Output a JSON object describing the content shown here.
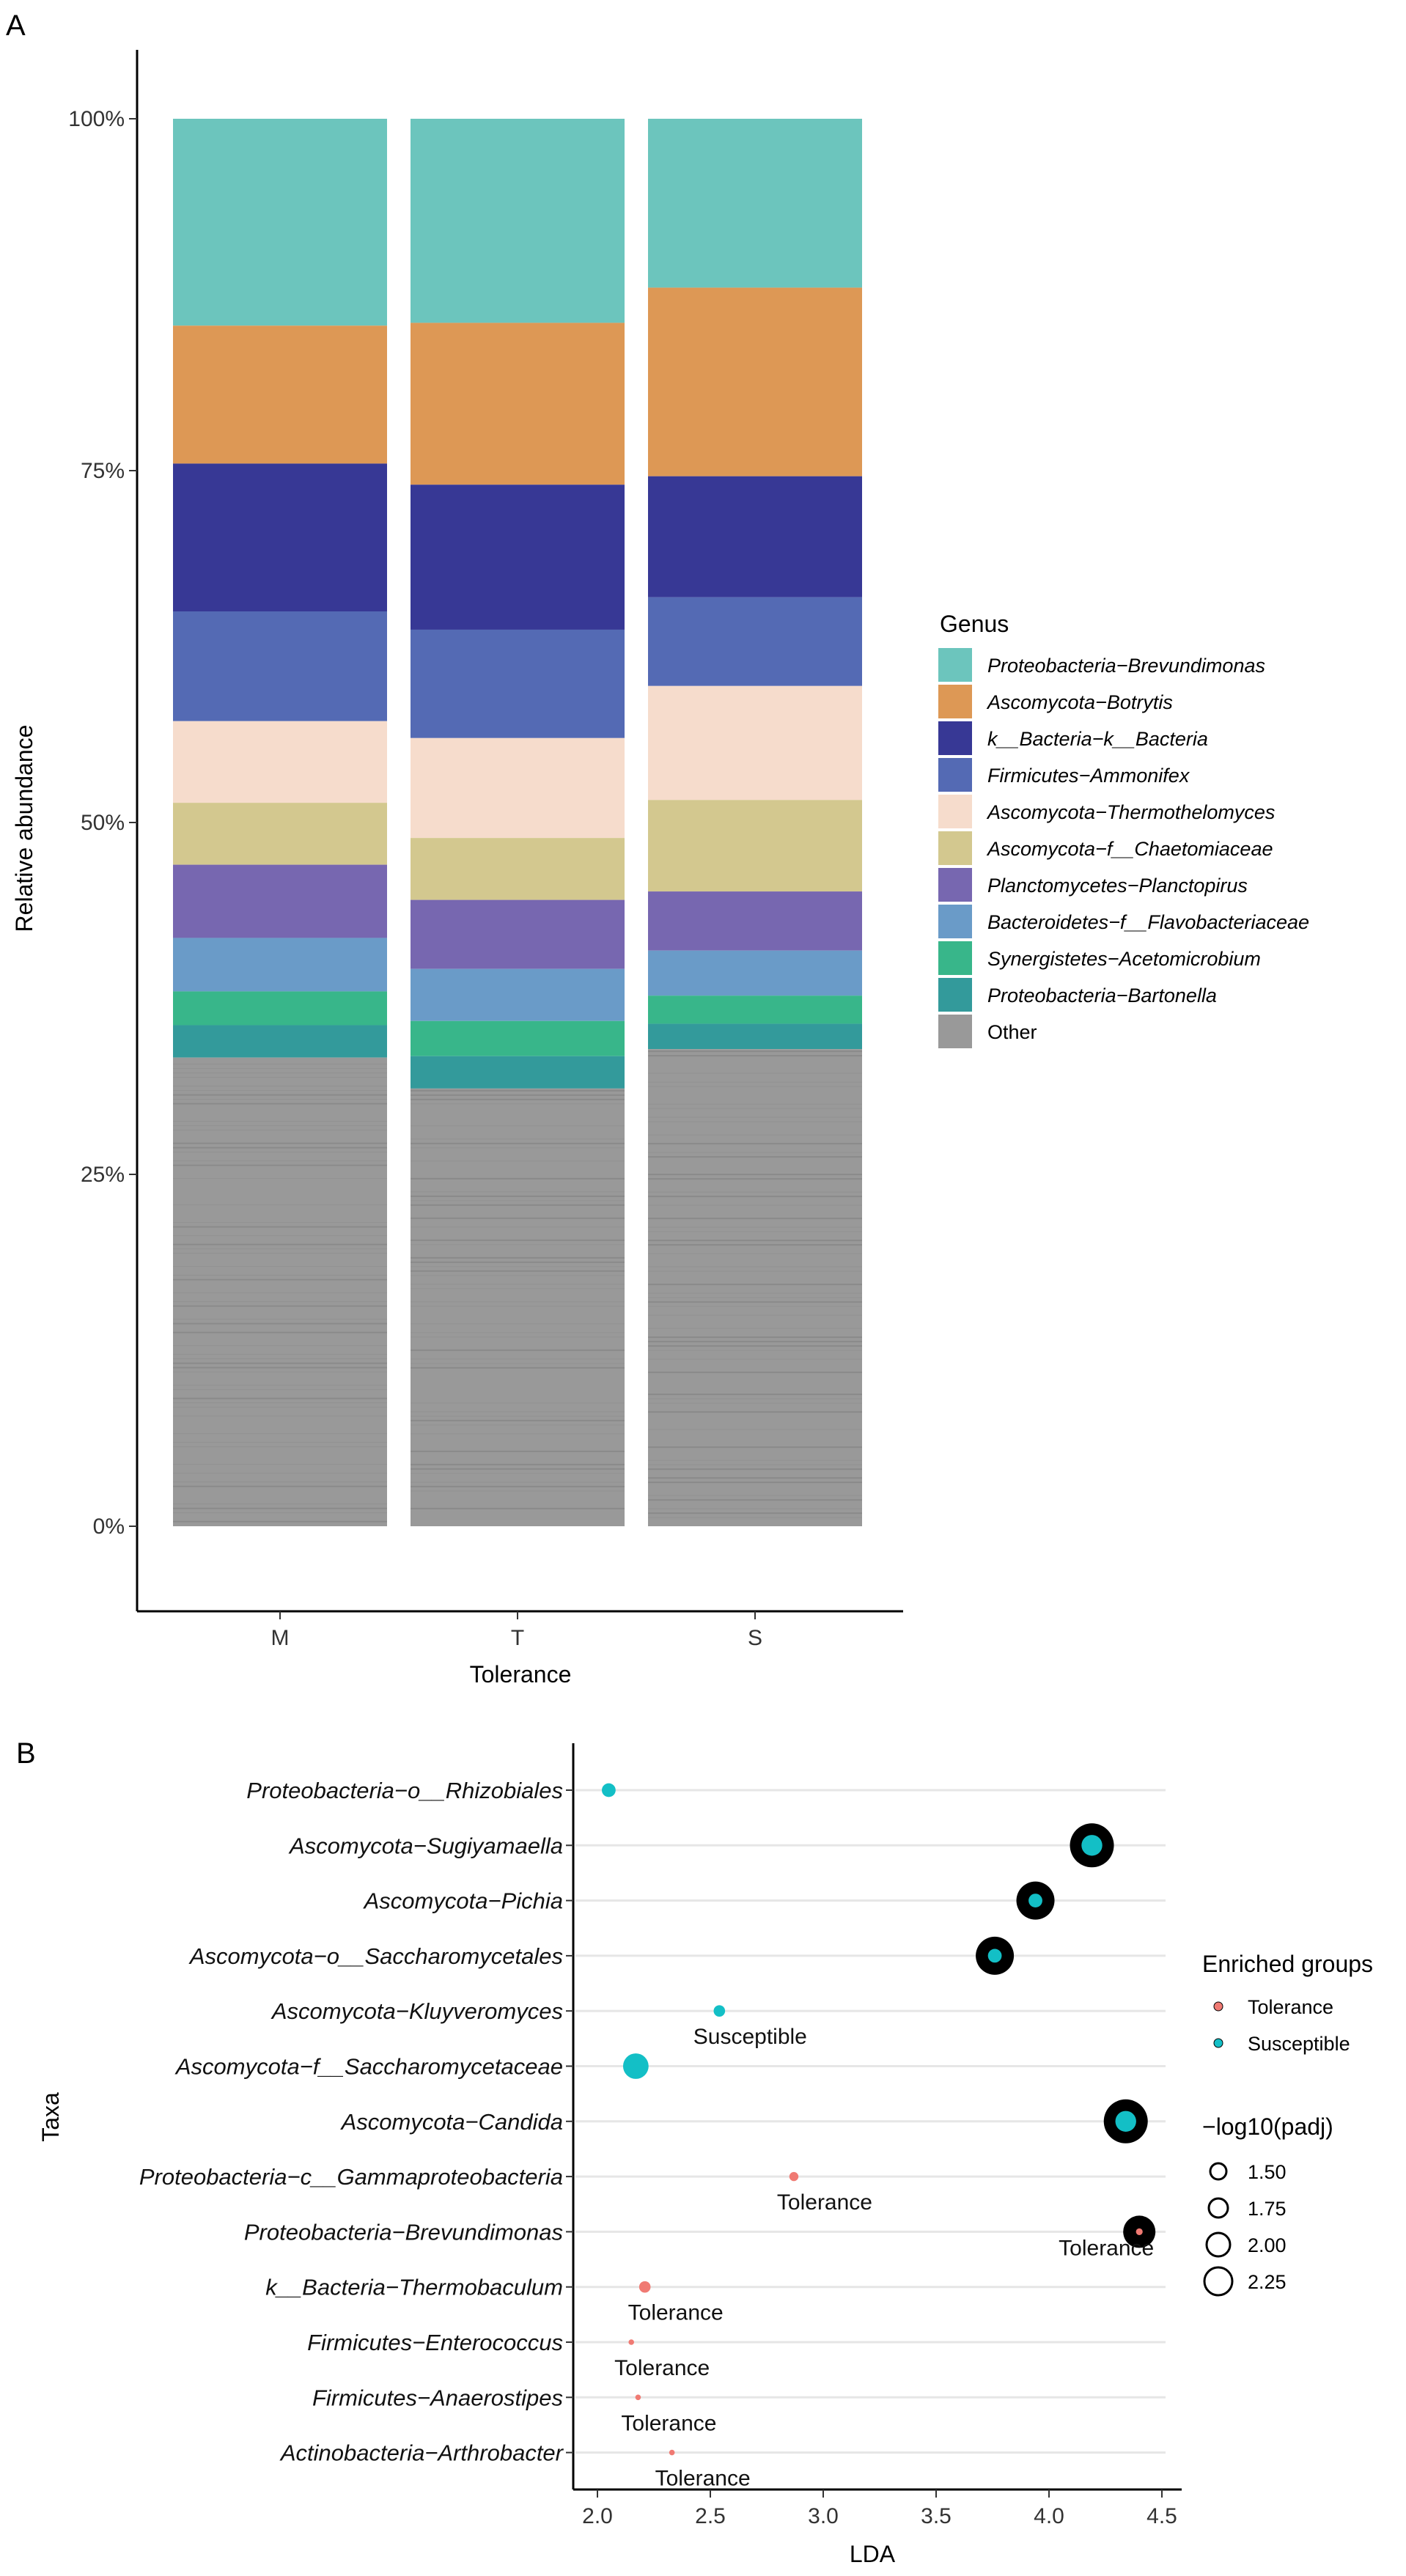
{
  "chart_data": [
    {
      "panel": "A",
      "type": "bar",
      "stacked": true,
      "xlabel": "Tolerance",
      "ylabel": "Relative abundance",
      "categories": [
        "M",
        "T",
        "S"
      ],
      "y_ticks": [
        "0%",
        "25%",
        "50%",
        "75%",
        "100%"
      ],
      "ylim": [
        0,
        100
      ],
      "legend": {
        "title": "Genus",
        "position": "right"
      },
      "series": [
        {
          "name": "Proteobacteria−Brevundimonas",
          "color": "#6CC5BD",
          "values": [
            14.7,
            14.5,
            12.0
          ]
        },
        {
          "name": "Ascomycota−Botrytis",
          "color": "#DD9855",
          "values": [
            9.8,
            11.5,
            13.4
          ]
        },
        {
          "name": "k__Bacteria−k__Bacteria",
          "color": "#373895",
          "values": [
            10.5,
            10.3,
            8.6
          ]
        },
        {
          "name": "Firmicutes−Ammonifex",
          "color": "#546AB4",
          "values": [
            7.8,
            7.7,
            6.3
          ]
        },
        {
          "name": "Ascomycota−Thermothelomyces",
          "color": "#F6DCCC",
          "values": [
            5.8,
            7.1,
            8.1
          ]
        },
        {
          "name": "Ascomycota−f__Chaetomiaceae",
          "color": "#D3C88F",
          "values": [
            4.4,
            4.4,
            6.5
          ]
        },
        {
          "name": "Planctomycetes−Planctopirus",
          "color": "#7767B0",
          "values": [
            5.2,
            4.9,
            4.2
          ]
        },
        {
          "name": "Bacteroidetes−f__Flavobacteriaceae",
          "color": "#6A9BC8",
          "values": [
            3.8,
            3.7,
            3.2
          ]
        },
        {
          "name": "Synergistetes−Acetomicrobium",
          "color": "#38B68A",
          "values": [
            2.4,
            2.5,
            2.0
          ]
        },
        {
          "name": "Proteobacteria−Bartonella",
          "color": "#339A9B",
          "values": [
            2.3,
            2.3,
            1.8
          ]
        },
        {
          "name": "Other",
          "color": "#999999",
          "values": [
            33.3,
            31.1,
            33.9
          ]
        }
      ]
    },
    {
      "panel": "B",
      "type": "scatter",
      "xlabel": "LDA",
      "ylabel": "Taxa",
      "xlim": [
        1.95,
        4.55
      ],
      "x_ticks": [
        "2.0",
        "2.5",
        "3.0",
        "3.5",
        "4.0",
        "4.5"
      ],
      "legend_color": {
        "title": "Enriched groups",
        "entries": [
          {
            "name": "Tolerance",
            "color": "#F07A73"
          },
          {
            "name": "Susceptible",
            "color": "#13BFC6"
          }
        ]
      },
      "legend_size": {
        "title": "−log10(padj)",
        "entries": [
          "1.50",
          "1.75",
          "2.00",
          "2.25"
        ]
      },
      "points": [
        {
          "taxon": "Proteobacteria−o__Rhizobiales",
          "lda": 2.05,
          "group": "Susceptible",
          "size": 1.7,
          "ring": false,
          "label": ""
        },
        {
          "taxon": "Ascomycota−Sugiyamaella",
          "lda": 4.19,
          "group": "Susceptible",
          "size": 2.0,
          "ring": true,
          "label": ""
        },
        {
          "taxon": "Ascomycota−Pichia",
          "lda": 3.94,
          "group": "Susceptible",
          "size": 1.7,
          "ring": true,
          "label": ""
        },
        {
          "taxon": "Ascomycota−o__Saccharomycetales",
          "lda": 3.76,
          "group": "Susceptible",
          "size": 1.7,
          "ring": true,
          "label": ""
        },
        {
          "taxon": "Ascomycota−Kluyveromyces",
          "lda": 2.54,
          "group": "Susceptible",
          "size": 1.6,
          "ring": false,
          "label": "Susceptible"
        },
        {
          "taxon": "Ascomycota−f__Saccharomycetaceae",
          "lda": 2.17,
          "group": "Susceptible",
          "size": 2.2,
          "ring": false,
          "label": ""
        },
        {
          "taxon": "Ascomycota−Candida",
          "lda": 4.34,
          "group": "Susceptible",
          "size": 2.0,
          "ring": true,
          "label": ""
        },
        {
          "taxon": "Proteobacteria−c__Gammaproteobacteria",
          "lda": 2.87,
          "group": "Tolerance",
          "size": 1.5,
          "ring": false,
          "label": "Tolerance"
        },
        {
          "taxon": "Proteobacteria−Brevundimonas",
          "lda": 4.4,
          "group": "Tolerance",
          "size": 1.4,
          "ring": true,
          "label": "Tolerance"
        },
        {
          "taxon": "k__Bacteria−Thermobaculum",
          "lda": 2.21,
          "group": "Tolerance",
          "size": 1.6,
          "ring": false,
          "label": "Tolerance"
        },
        {
          "taxon": "Firmicutes−Enterococcus",
          "lda": 2.15,
          "group": "Tolerance",
          "size": 1.35,
          "ring": false,
          "label": "Tolerance"
        },
        {
          "taxon": "Firmicutes−Anaerostipes",
          "lda": 2.18,
          "group": "Tolerance",
          "size": 1.35,
          "ring": false,
          "label": "Tolerance"
        },
        {
          "taxon": "Actinobacteria−Arthrobacter",
          "lda": 2.33,
          "group": "Tolerance",
          "size": 1.35,
          "ring": false,
          "label": "Tolerance"
        }
      ]
    }
  ],
  "panel_labels": [
    "A",
    "B"
  ]
}
